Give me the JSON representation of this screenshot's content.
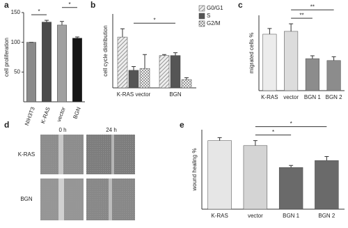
{
  "chart_data": [
    {
      "type": "bar",
      "panel": "a",
      "ylabel": "cell proliferation",
      "categories": [
        "NIH3T3",
        "K-RAS",
        "vector",
        "BGN"
      ],
      "values": [
        100,
        134,
        129,
        107
      ],
      "errors": [
        0,
        3,
        6,
        2
      ],
      "colors": [
        "#8a8a8a",
        "#4a4a4a",
        "#a0a0a0",
        "#161616"
      ],
      "ylim": [
        0,
        150
      ],
      "yticks": [
        50,
        100,
        150
      ],
      "annotations": [
        {
          "text": "*",
          "between": [
            "NIH3T3",
            "K-RAS"
          ]
        },
        {
          "text": "*",
          "between": [
            "vector",
            "BGN"
          ]
        }
      ]
    },
    {
      "type": "bar",
      "panel": "b",
      "ylabel": "cell cycle distribution",
      "categories": [
        "K-RAS vector",
        "BGN"
      ],
      "series": [
        {
          "name": "G0/G1",
          "color": "#bdbdbd",
          "pattern": "diagonal",
          "values": [
            55,
            35
          ],
          "errors": [
            9,
            1
          ]
        },
        {
          "name": "S",
          "color": "#555555",
          "pattern": "none",
          "values": [
            19,
            35
          ],
          "errors": [
            4,
            3
          ]
        },
        {
          "name": "G2/M",
          "color": "#cfcfcf",
          "pattern": "check",
          "values": [
            21,
            9
          ],
          "errors": [
            15,
            2
          ]
        }
      ],
      "ylim": [
        0,
        80
      ],
      "legend": "top-right",
      "annotations": [
        {
          "text": "*",
          "between": [
            "K-RAS vector",
            "BGN"
          ]
        }
      ]
    },
    {
      "type": "bar",
      "panel": "c",
      "ylabel": "migrated cells %",
      "categories": [
        "K-RAS",
        "vector",
        "BGN 1",
        "BGN 2"
      ],
      "values": [
        30,
        31.5,
        17,
        16
      ],
      "errors": [
        3,
        4,
        1.5,
        2
      ],
      "colors": [
        "#ececec",
        "#dcdcdc",
        "#8c8c8c",
        "#8c8c8c"
      ],
      "ylim": [
        0,
        40
      ],
      "annotations": [
        {
          "text": "**",
          "between": [
            "vector",
            "BGN 1"
          ]
        },
        {
          "text": "**",
          "between": [
            "vector",
            "BGN 2"
          ]
        }
      ]
    },
    {
      "type": "bar",
      "panel": "e",
      "ylabel": "wound healing %",
      "categories": [
        "K-RAS",
        "vector",
        "BGN 1",
        "BGN 2"
      ],
      "values": [
        69,
        64,
        42,
        49
      ],
      "errors": [
        3,
        5,
        2,
        4
      ],
      "colors": [
        "#e6e6e6",
        "#d4d4d4",
        "#6a6a6a",
        "#6a6a6a"
      ],
      "ylim": [
        0,
        80
      ],
      "annotations": [
        {
          "text": "*",
          "between": [
            "vector",
            "BGN 1"
          ]
        },
        {
          "text": "*",
          "between": [
            "vector",
            "BGN 2"
          ]
        }
      ]
    }
  ],
  "image_panel": {
    "panel": "d",
    "columns": [
      "0 h",
      "24 h"
    ],
    "rows": [
      "K-RAS",
      "BGN"
    ]
  }
}
